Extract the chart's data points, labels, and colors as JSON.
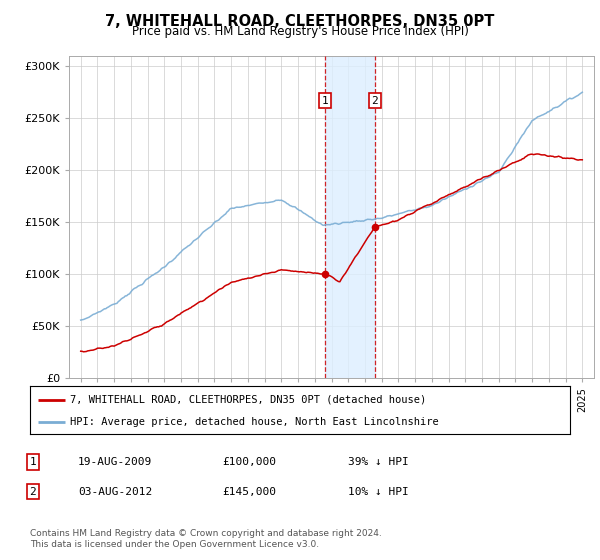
{
  "title": "7, WHITEHALL ROAD, CLEETHORPES, DN35 0PT",
  "subtitle": "Price paid vs. HM Land Registry's House Price Index (HPI)",
  "ylabel_ticks": [
    "£0",
    "£50K",
    "£100K",
    "£150K",
    "£200K",
    "£250K",
    "£300K"
  ],
  "ytick_values": [
    0,
    50000,
    100000,
    150000,
    200000,
    250000,
    300000
  ],
  "ylim": [
    0,
    310000
  ],
  "sale1_year": 2009.625,
  "sale2_year": 2012.583,
  "sale1_price": 100000,
  "sale2_price": 145000,
  "legend_red": "7, WHITEHALL ROAD, CLEETHORPES, DN35 0PT (detached house)",
  "legend_blue": "HPI: Average price, detached house, North East Lincolnshire",
  "table_row1": [
    "1",
    "19-AUG-2009",
    "£100,000",
    "39% ↓ HPI"
  ],
  "table_row2": [
    "2",
    "03-AUG-2012",
    "£145,000",
    "10% ↓ HPI"
  ],
  "footnote": "Contains HM Land Registry data © Crown copyright and database right 2024.\nThis data is licensed under the Open Government Licence v3.0.",
  "color_red": "#cc0000",
  "color_blue": "#7aadd4",
  "color_shade": "#ddeeff",
  "background": "#ffffff",
  "xlim_left": 1994.3,
  "xlim_right": 2025.7
}
